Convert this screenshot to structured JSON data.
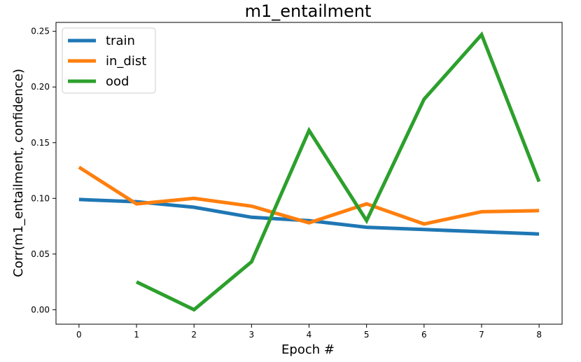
{
  "chart_data": {
    "type": "line",
    "title": "m1_entailment",
    "xlabel": "Epoch #",
    "ylabel": "Corr(m1_entailment, confidence)",
    "xlim": [
      -0.4,
      8.4
    ],
    "ylim": [
      -0.013,
      0.258
    ],
    "xticks": [
      0,
      1,
      2,
      3,
      4,
      5,
      6,
      7,
      8
    ],
    "xtick_labels": [
      "0",
      "1",
      "2",
      "3",
      "4",
      "5",
      "6",
      "7",
      "8"
    ],
    "yticks": [
      0.0,
      0.05,
      0.1,
      0.15,
      0.2,
      0.25
    ],
    "ytick_labels": [
      "0.00",
      "0.05",
      "0.10",
      "0.15",
      "0.20",
      "0.25"
    ],
    "grid": false,
    "legend_position": "top-left",
    "series": [
      {
        "name": "train",
        "color": "#1f77b4",
        "x": [
          0,
          1,
          2,
          3,
          4,
          5,
          6,
          7,
          8
        ],
        "y": [
          0.099,
          0.097,
          0.092,
          0.083,
          0.08,
          0.074,
          0.072,
          0.07,
          0.068
        ]
      },
      {
        "name": "in_dist",
        "color": "#ff7f0e",
        "x": [
          0,
          1,
          2,
          3,
          4,
          5,
          6,
          7,
          8
        ],
        "y": [
          0.128,
          0.095,
          0.1,
          0.093,
          0.078,
          0.095,
          0.077,
          0.088,
          0.089
        ]
      },
      {
        "name": "ood",
        "color": "#2ca02c",
        "x": [
          1,
          2,
          3,
          4,
          5,
          6,
          7,
          8
        ],
        "y": [
          0.025,
          0.0,
          0.043,
          0.161,
          0.08,
          0.189,
          0.247,
          0.115
        ]
      }
    ]
  }
}
